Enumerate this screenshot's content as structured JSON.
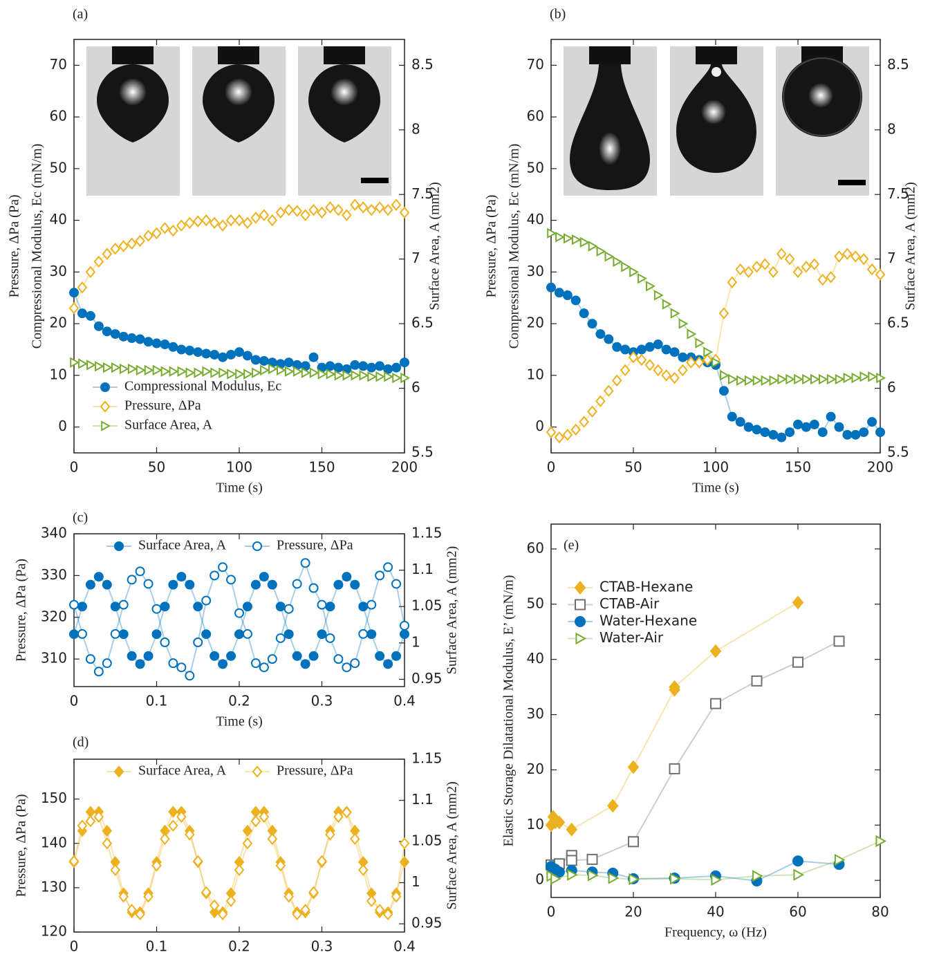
{
  "chart_data": [
    {
      "type": "line",
      "label": "(a)",
      "xlabel": "Time (s)",
      "ylabel": [
        "Pressure, ΔPa (Pa)",
        "Compressional Modulus, Ec (mN/m)"
      ],
      "y2label": "Surface Area, A (mm2)",
      "xlim": [
        0,
        200
      ],
      "xticks": [
        0,
        50,
        100,
        150,
        200
      ],
      "ylim": [
        -5,
        75
      ],
      "yticks": [
        0,
        10,
        20,
        30,
        40,
        50,
        60,
        70
      ],
      "y2lim": [
        5.5,
        8.7
      ],
      "y2ticks": [
        5.5,
        6,
        6.5,
        7,
        7.5,
        8,
        8.5
      ],
      "legend": "lower left",
      "x": [
        0,
        5,
        10,
        15,
        20,
        25,
        30,
        35,
        40,
        45,
        50,
        55,
        60,
        65,
        70,
        75,
        80,
        85,
        90,
        95,
        100,
        105,
        110,
        115,
        120,
        125,
        130,
        135,
        140,
        145,
        150,
        155,
        160,
        165,
        170,
        175,
        180,
        185,
        190,
        195,
        200
      ],
      "series": [
        {
          "name": "Compressional Modulus, Ec",
          "color": "#0072bd",
          "marker": "circle",
          "filled": true,
          "values": [
            26,
            22,
            21.5,
            19.5,
            18.5,
            18,
            17.5,
            17.2,
            17,
            16.5,
            16.2,
            16,
            15.5,
            15,
            14.8,
            14.5,
            14.2,
            14,
            13.5,
            14,
            14.5,
            13.8,
            13,
            12.8,
            12.5,
            12.2,
            12.5,
            12,
            11.8,
            13.5,
            11.5,
            11.8,
            11.5,
            11.2,
            12,
            11.8,
            11.5,
            11.8,
            11.2,
            11.5,
            12.5
          ]
        },
        {
          "name": "Pressure, ΔPa",
          "color": "#edb120",
          "marker": "diamond",
          "filled": false,
          "values": [
            23,
            27,
            30,
            32,
            33.5,
            34.5,
            35,
            35.5,
            36,
            37,
            37.5,
            38.5,
            38,
            39,
            39.5,
            39.8,
            40,
            39.5,
            39,
            40,
            40,
            39.5,
            40.5,
            41,
            40,
            41.5,
            42,
            41.8,
            41,
            42,
            41.5,
            42.5,
            42,
            41,
            43,
            42.5,
            42,
            42.5,
            42,
            43,
            41.5
          ]
        },
        {
          "name": "Surface Area, A",
          "color": "#77ac30",
          "marker": "triangle",
          "filled": false,
          "axis": "y2",
          "values": [
            6.2,
            6.19,
            6.18,
            6.17,
            6.16,
            6.16,
            6.15,
            6.15,
            6.14,
            6.14,
            6.14,
            6.13,
            6.13,
            6.13,
            6.12,
            6.12,
            6.13,
            6.12,
            6.12,
            6.11,
            6.11,
            6.11,
            6.12,
            6.14,
            6.15,
            6.14,
            6.13,
            6.13,
            6.12,
            6.12,
            6.11,
            6.11,
            6.1,
            6.1,
            6.1,
            6.1,
            6.09,
            6.09,
            6.09,
            6.08,
            6.08
          ]
        }
      ]
    },
    {
      "type": "line",
      "label": "(b)",
      "xlabel": "Time (s)",
      "ylabel": [
        "Pressure, ΔPa (Pa)",
        "Compressional Modulus, Ec (mN/m)"
      ],
      "y2label": "Surface Area, A (mm2)",
      "xlim": [
        0,
        200
      ],
      "xticks": [
        0,
        50,
        100,
        150,
        200
      ],
      "ylim": [
        -5,
        75
      ],
      "yticks": [
        0,
        10,
        20,
        30,
        40,
        50,
        60,
        70
      ],
      "y2lim": [
        5.5,
        8.7
      ],
      "y2ticks": [
        5.5,
        6,
        6.5,
        7,
        7.5,
        8,
        8.5
      ],
      "x": [
        0,
        5,
        10,
        15,
        20,
        25,
        30,
        35,
        40,
        45,
        50,
        55,
        60,
        65,
        70,
        75,
        80,
        85,
        90,
        95,
        100,
        105,
        110,
        115,
        120,
        125,
        130,
        135,
        140,
        145,
        150,
        155,
        160,
        165,
        170,
        175,
        180,
        185,
        190,
        195,
        200
      ],
      "series": [
        {
          "color": "#0072bd",
          "marker": "circle",
          "filled": true,
          "values": [
            27,
            26,
            25.5,
            24.5,
            22,
            20,
            18,
            17,
            15.5,
            15,
            14.5,
            15,
            15.5,
            16,
            15,
            14.5,
            13.5,
            13.5,
            13,
            12.5,
            12,
            7,
            2,
            1,
            0,
            -0.5,
            -1,
            -1.5,
            -2,
            -1,
            0.5,
            0,
            0.5,
            -1,
            2,
            0,
            -1.5,
            -1.5,
            -1,
            1,
            -1
          ]
        },
        {
          "color": "#edb120",
          "marker": "diamond",
          "filled": false,
          "values": [
            -1,
            -2,
            -1.5,
            -0.5,
            1,
            3,
            5,
            7,
            9,
            11,
            13.5,
            13,
            12,
            11,
            10,
            9.5,
            11,
            12.5,
            12.5,
            13,
            13,
            22,
            28,
            30.5,
            30,
            31,
            31.5,
            30,
            33.5,
            32.5,
            30,
            31,
            31.5,
            28.5,
            29,
            33,
            33.5,
            33,
            32.5,
            30.5,
            29.5
          ]
        },
        {
          "color": "#77ac30",
          "marker": "triangle",
          "filled": false,
          "axis": "y2",
          "values": [
            7.2,
            7.17,
            7.16,
            7.15,
            7.13,
            7.1,
            7.06,
            7.02,
            6.98,
            6.94,
            6.9,
            6.85,
            6.79,
            6.72,
            6.65,
            6.58,
            6.5,
            6.42,
            6.35,
            6.28,
            6.2,
            6.1,
            6.07,
            6.06,
            6.06,
            6.06,
            6.06,
            6.06,
            6.07,
            6.07,
            6.07,
            6.07,
            6.07,
            6.07,
            6.07,
            6.07,
            6.08,
            6.08,
            6.09,
            6.09,
            6.08
          ]
        }
      ]
    },
    {
      "type": "line",
      "label": "(c)",
      "xlabel": "Time (s)",
      "ylabel": [
        "Pressure, ΔPa (Pa)"
      ],
      "y2label": "Surface Area, A (mm2)",
      "xlim": [
        0,
        0.4
      ],
      "xticks": [
        0,
        0.1,
        0.2,
        0.3,
        0.4
      ],
      "ylim": [
        303.4,
        340
      ],
      "yticks": [
        310,
        320,
        330,
        340
      ],
      "y2lim": [
        0.94,
        1.15
      ],
      "y2ticks": [
        0.95,
        1,
        1.05,
        1.1,
        1.15
      ],
      "legend": "upper center",
      "x": [
        0,
        0.01,
        0.02,
        0.03,
        0.04,
        0.05,
        0.06,
        0.07,
        0.08,
        0.09,
        0.1,
        0.11,
        0.12,
        0.13,
        0.14,
        0.15,
        0.16,
        0.17,
        0.18,
        0.19,
        0.2,
        0.21,
        0.22,
        0.23,
        0.24,
        0.25,
        0.26,
        0.27,
        0.28,
        0.29,
        0.3,
        0.31,
        0.32,
        0.33,
        0.34,
        0.35,
        0.36,
        0.37,
        0.38,
        0.39,
        0.4
      ],
      "series": [
        {
          "name": "Surface Area, A",
          "color": "#0072bd",
          "marker": "circle",
          "filled": true,
          "axis": "y2",
          "values": [
            1.012,
            1.05,
            1.08,
            1.091,
            1.08,
            1.05,
            1.012,
            0.982,
            0.971,
            0.982,
            1.012,
            1.05,
            1.08,
            1.091,
            1.08,
            1.05,
            1.012,
            0.982,
            0.971,
            0.982,
            1.012,
            1.05,
            1.08,
            1.091,
            1.08,
            1.05,
            1.012,
            0.982,
            0.971,
            0.982,
            1.012,
            1.05,
            1.08,
            1.091,
            1.08,
            1.05,
            1.012,
            0.982,
            0.971,
            0.982,
            1.012
          ]
        },
        {
          "name": "Pressure, ΔPa",
          "color": "#0072bd",
          "marker": "circle",
          "filled": false,
          "values": [
            323,
            316,
            310,
            307,
            309,
            316,
            323,
            329,
            331,
            328,
            322,
            314,
            309,
            308,
            306,
            314,
            324,
            330,
            332,
            329,
            321,
            316,
            309,
            308,
            310,
            315,
            322,
            328,
            333,
            327,
            323,
            315,
            310,
            308,
            309,
            316,
            323,
            330,
            332,
            328,
            318
          ]
        }
      ]
    },
    {
      "type": "line",
      "label": "(d)",
      "xlabel": "Time (s)",
      "ylabel": [
        "Pressure, ΔPa (Pa)"
      ],
      "y2label": "Surface Area, A (mm2)",
      "xlim": [
        0,
        0.4
      ],
      "xticks": [
        0,
        0.1,
        0.2,
        0.3,
        0.4
      ],
      "ylim": [
        120,
        159
      ],
      "yticks": [
        120,
        130,
        140,
        150
      ],
      "y2lim": [
        0.94,
        1.15
      ],
      "y2ticks": [
        0.95,
        1,
        1.05,
        1.1,
        1.15
      ],
      "legend": "upper center",
      "x": [
        0,
        0.01,
        0.02,
        0.03,
        0.04,
        0.05,
        0.06,
        0.07,
        0.08,
        0.09,
        0.1,
        0.11,
        0.12,
        0.13,
        0.14,
        0.15,
        0.16,
        0.17,
        0.18,
        0.19,
        0.2,
        0.21,
        0.22,
        0.23,
        0.24,
        0.25,
        0.26,
        0.27,
        0.28,
        0.29,
        0.3,
        0.31,
        0.32,
        0.33,
        0.34,
        0.35,
        0.36,
        0.37,
        0.38,
        0.39,
        0.4
      ],
      "series": [
        {
          "name": "Surface Area, A",
          "color": "#edb120",
          "marker": "diamond",
          "filled": true,
          "axis": "y2",
          "values": [
            1.025,
            1.063,
            1.086,
            1.086,
            1.063,
            1.025,
            0.987,
            0.964,
            0.964,
            0.987,
            1.025,
            1.063,
            1.086,
            1.086,
            1.063,
            1.025,
            0.987,
            0.964,
            0.964,
            0.987,
            1.025,
            1.063,
            1.086,
            1.086,
            1.063,
            1.025,
            0.987,
            0.964,
            0.964,
            0.987,
            1.025,
            1.063,
            1.086,
            1.086,
            1.063,
            1.025,
            0.987,
            0.964,
            0.964,
            0.987,
            1.025
          ]
        },
        {
          "name": "Pressure, ΔPa",
          "color": "#edb120",
          "marker": "diamond",
          "filled": false,
          "values": [
            136,
            144,
            145,
            146,
            140,
            134,
            128,
            125,
            124,
            128,
            135,
            141,
            144,
            146,
            142,
            136,
            129,
            126,
            124,
            127,
            134,
            140,
            145,
            146,
            141,
            135,
            128,
            124,
            125,
            129,
            136,
            142,
            146,
            147,
            141,
            134,
            127,
            125,
            124,
            128,
            140
          ]
        }
      ]
    },
    {
      "type": "line",
      "label": "(e)",
      "xlabel": "Frequency, ω (Hz)",
      "ylabel": [
        "Elastic Storage Dilatational Modulus, E’ (mN/m)"
      ],
      "xlim": [
        0,
        80
      ],
      "xticks": [
        0,
        20,
        40,
        60,
        80
      ],
      "ylim": [
        -3.1,
        64.5
      ],
      "yticks": [
        0,
        10,
        20,
        30,
        40,
        50,
        60
      ],
      "legend": "upper left",
      "series": [
        {
          "name": "CTAB-Hexane",
          "color": "#edb120",
          "marker": "diamond",
          "filled": true,
          "x": [
            0,
            0.5,
            1,
            2,
            5,
            15,
            20,
            30,
            30,
            40,
            60
          ],
          "values": [
            10,
            11.5,
            10.5,
            10.5,
            9.2,
            13.5,
            20.5,
            34.5,
            35,
            41.5,
            50.3
          ]
        },
        {
          "name": "CTAB-Air",
          "color": "#707070",
          "marker": "square",
          "filled": false,
          "x": [
            0,
            1,
            2,
            5,
            5,
            10,
            20,
            30,
            40,
            50,
            60,
            70
          ],
          "values": [
            2.8,
            2.5,
            3,
            4.5,
            3.6,
            3.8,
            7,
            20.2,
            32,
            36.1,
            39.5,
            43.3
          ]
        },
        {
          "name": "Water-Hexane",
          "color": "#0072bd",
          "marker": "circle",
          "filled": true,
          "x": [
            0,
            1,
            2,
            5,
            10,
            15,
            20,
            30,
            40,
            50,
            60,
            70
          ],
          "values": [
            2.5,
            2,
            1.5,
            1.8,
            1.5,
            1.3,
            0.3,
            0.4,
            0.8,
            -0.1,
            3.5,
            2.9
          ]
        },
        {
          "name": "Water-Air",
          "color": "#77ac30",
          "marker": "triangle",
          "filled": false,
          "x": [
            0,
            1,
            5,
            10,
            15,
            20,
            30,
            40,
            50,
            60,
            70,
            80
          ],
          "values": [
            0.8,
            0.3,
            1,
            0.9,
            0.4,
            0.2,
            0.3,
            0.1,
            0.8,
            1,
            3.7,
            7.1
          ]
        }
      ]
    }
  ]
}
